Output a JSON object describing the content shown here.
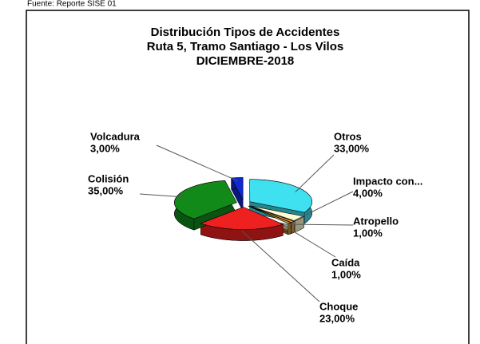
{
  "source": "Fuente: Reporte SISE 01",
  "chart_data": {
    "type": "pie",
    "title": [
      "Distribución Tipos de Accidentes",
      "Ruta 5, Tramo Santiago - Los Vilos",
      "DICIEMBRE-2018"
    ],
    "categories": [
      "Otros",
      "Impacto con...",
      "Atropello",
      "Caída",
      "Choque",
      "Colisión",
      "Volcadura"
    ],
    "values": [
      33,
      4,
      1,
      1,
      23,
      35,
      3
    ],
    "value_labels": [
      "33,00%",
      "4,00%",
      "1,00%",
      "1,00%",
      "23,00%",
      "35,00%",
      "3,00%"
    ],
    "colors": [
      "#3fe0f0",
      "#fffbd0",
      "#f59a30",
      "#c89a3a",
      "#ee2020",
      "#128a1a",
      "#1028d0"
    ]
  }
}
